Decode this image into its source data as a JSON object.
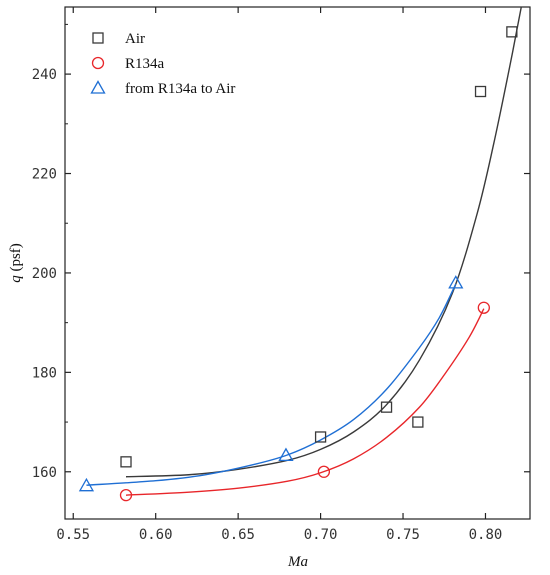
{
  "chart_data": {
    "type": "scatter",
    "xlabel": "Ma",
    "ylabel": "q (psf)",
    "ylabel_var": "q",
    "ylabel_unit": " (psf)",
    "xlim": [
      0.545,
      0.827
    ],
    "ylim": [
      150.5,
      253.5
    ],
    "xticks": [
      0.55,
      0.6,
      0.65,
      0.7,
      0.75,
      0.8
    ],
    "xtick_labels": [
      "0.55",
      "0.60",
      "0.65",
      "0.70",
      "0.75",
      "0.80"
    ],
    "yticks": [
      160,
      180,
      200,
      220,
      240
    ],
    "ytick_labels": [
      "160",
      "180",
      "200",
      "220",
      "240"
    ],
    "grid": false,
    "legend_position": "top-left",
    "series": [
      {
        "name": "Air",
        "marker": "square",
        "color": "#3a3a3a",
        "points": [
          [
            0.582,
            162
          ],
          [
            0.7,
            167
          ],
          [
            0.74,
            173
          ],
          [
            0.759,
            170
          ],
          [
            0.797,
            236.5
          ],
          [
            0.816,
            248.5
          ]
        ],
        "fit": [
          [
            0.582,
            159.0
          ],
          [
            0.62,
            159.4
          ],
          [
            0.65,
            160.5
          ],
          [
            0.68,
            162.3
          ],
          [
            0.7,
            164.5
          ],
          [
            0.72,
            168.0
          ],
          [
            0.74,
            173.5
          ],
          [
            0.76,
            182.5
          ],
          [
            0.78,
            196.0
          ],
          [
            0.795,
            212.0
          ],
          [
            0.805,
            226.0
          ],
          [
            0.815,
            242.0
          ],
          [
            0.822,
            254.0
          ]
        ]
      },
      {
        "name": "R134a",
        "marker": "circle",
        "color": "#e8262a",
        "points": [
          [
            0.582,
            155.3
          ],
          [
            0.702,
            160.0
          ],
          [
            0.799,
            193.0
          ]
        ],
        "fit": [
          [
            0.582,
            155.3
          ],
          [
            0.62,
            155.9
          ],
          [
            0.65,
            156.7
          ],
          [
            0.68,
            158.1
          ],
          [
            0.7,
            159.8
          ],
          [
            0.72,
            162.6
          ],
          [
            0.74,
            166.9
          ],
          [
            0.76,
            173.0
          ],
          [
            0.775,
            179.5
          ],
          [
            0.79,
            187.0
          ],
          [
            0.799,
            192.8
          ]
        ]
      },
      {
        "name": "from R134a to Air",
        "marker": "triangle",
        "color": "#1f6fd4",
        "points": [
          [
            0.558,
            157.2
          ],
          [
            0.679,
            163.3
          ],
          [
            0.782,
            198.0
          ]
        ],
        "fit": [
          [
            0.558,
            157.3
          ],
          [
            0.6,
            158.2
          ],
          [
            0.63,
            159.4
          ],
          [
            0.66,
            161.5
          ],
          [
            0.68,
            163.4
          ],
          [
            0.7,
            166.4
          ],
          [
            0.72,
            170.5
          ],
          [
            0.74,
            176.6
          ],
          [
            0.76,
            185.0
          ],
          [
            0.772,
            191.0
          ],
          [
            0.782,
            197.8
          ]
        ]
      }
    ]
  }
}
